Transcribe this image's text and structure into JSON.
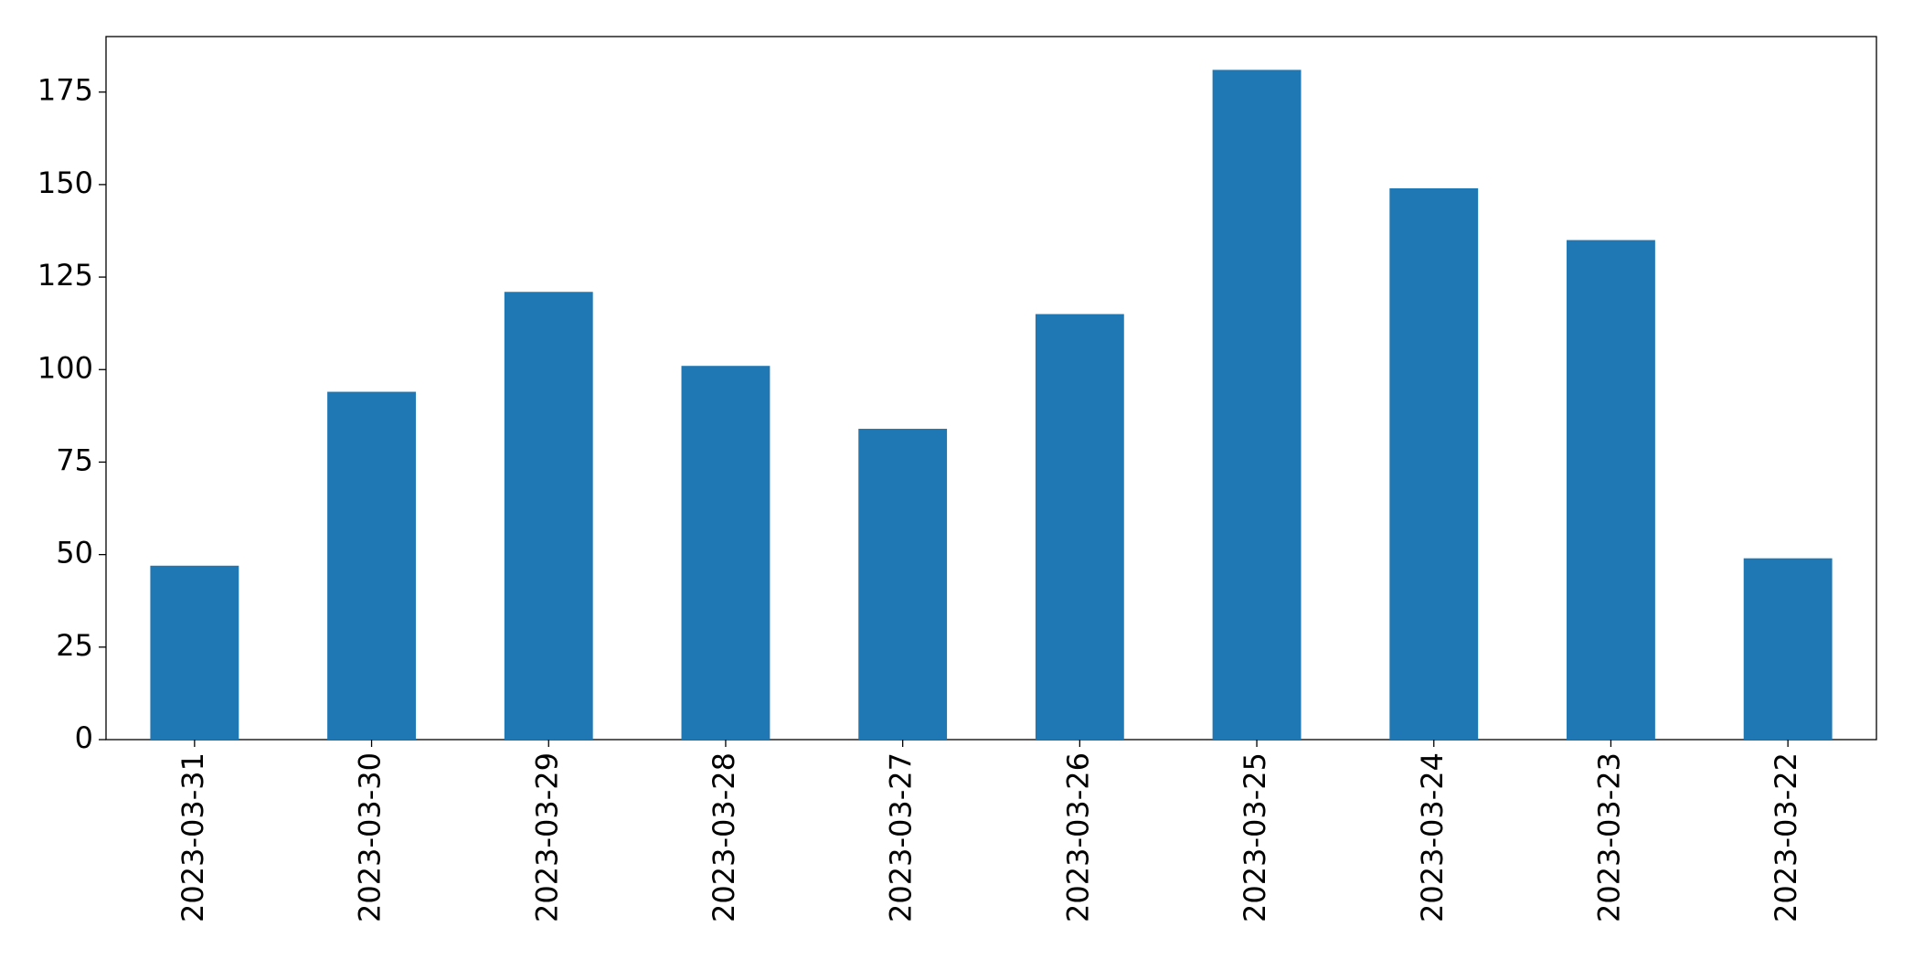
{
  "chart_data": {
    "type": "bar",
    "categories": [
      "2023-03-31",
      "2023-03-30",
      "2023-03-29",
      "2023-03-28",
      "2023-03-27",
      "2023-03-26",
      "2023-03-25",
      "2023-03-24",
      "2023-03-23",
      "2023-03-22"
    ],
    "values": [
      47,
      94,
      121,
      101,
      84,
      115,
      181,
      149,
      135,
      49
    ],
    "color": "#1f77b4",
    "ylim": [
      0,
      190
    ],
    "yticks": [
      0,
      25,
      50,
      75,
      100,
      125,
      150,
      175
    ],
    "grid": false
  }
}
